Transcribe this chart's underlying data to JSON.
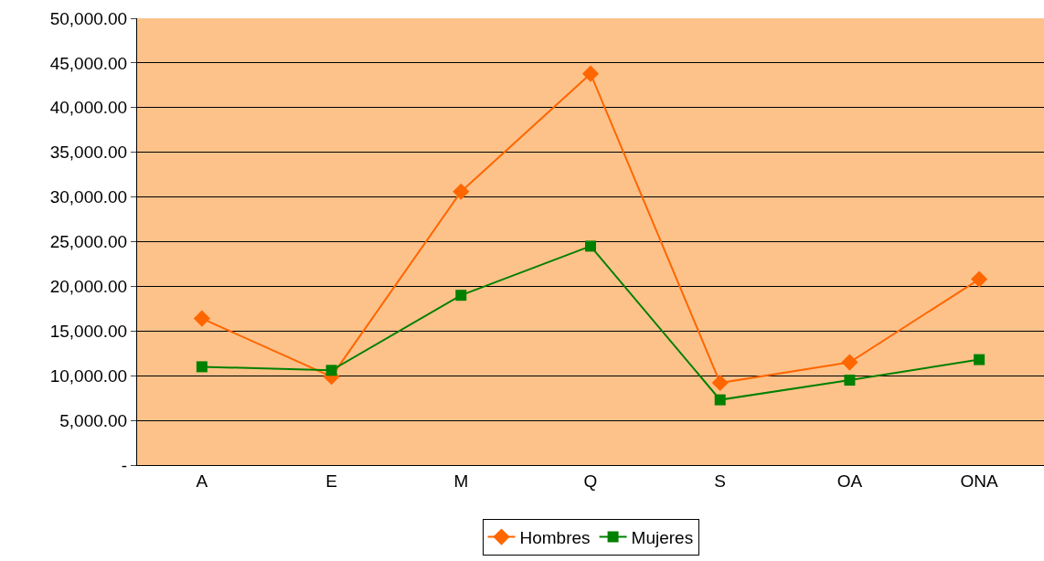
{
  "chart_data": {
    "type": "line",
    "categories": [
      "A",
      "E",
      "M",
      "Q",
      "S",
      "OA",
      "ONA"
    ],
    "series": [
      {
        "name": "Hombres",
        "color": "#ff6600",
        "marker": "diamond",
        "values": [
          16400,
          9900,
          30600,
          43800,
          9200,
          11500,
          20800
        ]
      },
      {
        "name": "Mujeres",
        "color": "#008000",
        "marker": "square",
        "values": [
          11000,
          10600,
          19000,
          24500,
          7300,
          9500,
          11800
        ]
      }
    ],
    "ylim": [
      0,
      50000
    ],
    "yticks": [
      {
        "value": 0,
        "label": "-"
      },
      {
        "value": 5000,
        "label": "5,000.00"
      },
      {
        "value": 10000,
        "label": "10,000.00"
      },
      {
        "value": 15000,
        "label": "15,000.00"
      },
      {
        "value": 20000,
        "label": "20,000.00"
      },
      {
        "value": 25000,
        "label": "25,000.00"
      },
      {
        "value": 30000,
        "label": "30,000.00"
      },
      {
        "value": 35000,
        "label": "35,000.00"
      },
      {
        "value": 40000,
        "label": "40,000.00"
      },
      {
        "value": 45000,
        "label": "45,000.00"
      },
      {
        "value": 50000,
        "label": "50,000.00"
      }
    ],
    "grid": "y",
    "legend": "bottom",
    "line_style": "solid"
  }
}
